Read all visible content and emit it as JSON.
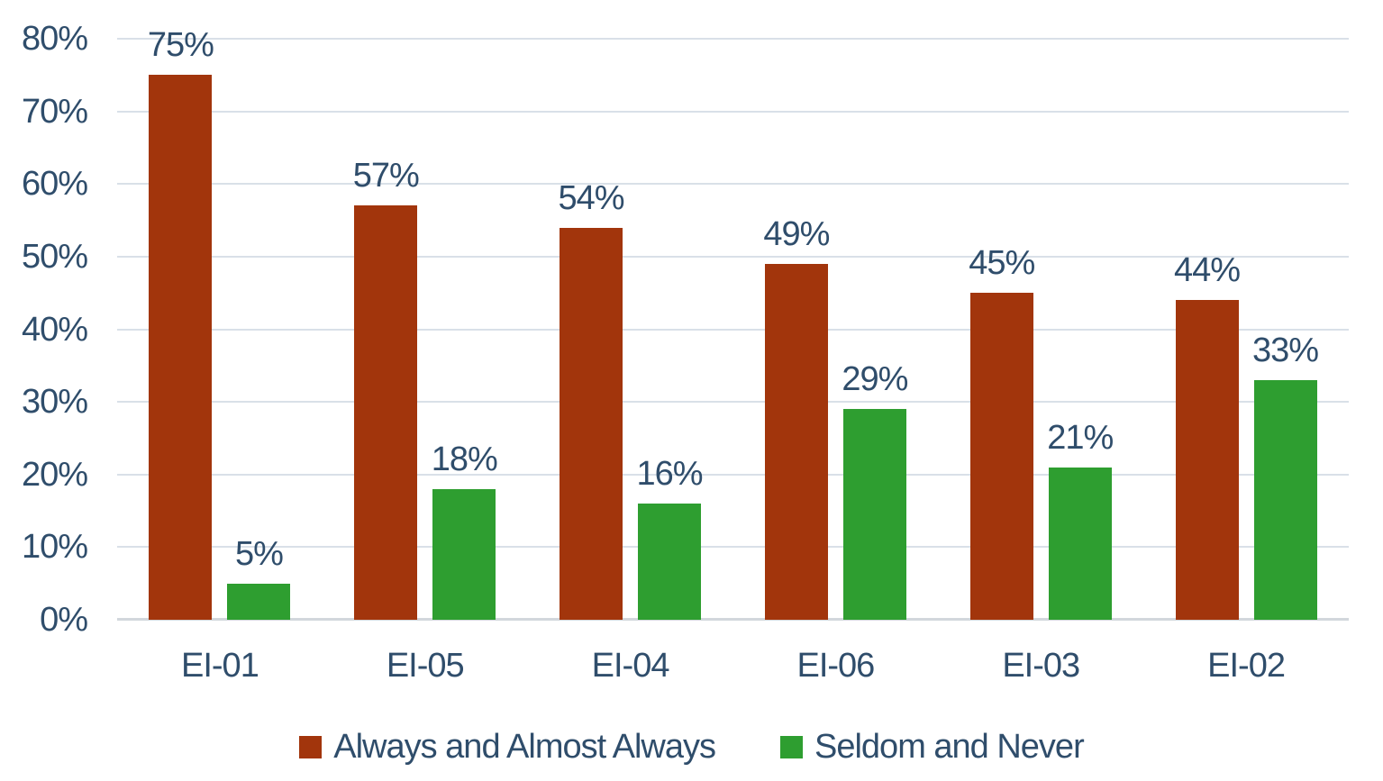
{
  "chart_data": {
    "type": "bar",
    "title": "",
    "categories": [
      "EI-01",
      "EI-05",
      "EI-04",
      "EI-06",
      "EI-03",
      "EI-02"
    ],
    "series": [
      {
        "name": "Always and Almost Always",
        "color": "#A2350C",
        "values": [
          75,
          57,
          54,
          49,
          45,
          44
        ]
      },
      {
        "name": "Seldom and Never",
        "color": "#2E9E30",
        "values": [
          5,
          18,
          16,
          29,
          21,
          33
        ]
      }
    ],
    "value_labels": [
      [
        "75%",
        "57%",
        "54%",
        "49%",
        "45%",
        "44%"
      ],
      [
        "5%",
        "18%",
        "16%",
        "29%",
        "21%",
        "33%"
      ]
    ],
    "xlabel": "",
    "ylabel": "",
    "y_axis": {
      "min": 0,
      "max": 80,
      "tick_step": 10,
      "tick_labels": [
        "0%",
        "10%",
        "20%",
        "30%",
        "40%",
        "50%",
        "60%",
        "70%",
        "80%"
      ]
    },
    "grid": true,
    "legend_position": "bottom"
  },
  "colors": {
    "bar_series_1": "#A2350C",
    "bar_series_2": "#2E9E30",
    "text": "#2F4D6B",
    "gridline": "#D9E0E8",
    "axis_baseline": "#D2D7DC",
    "background": "#FFFFFF"
  }
}
